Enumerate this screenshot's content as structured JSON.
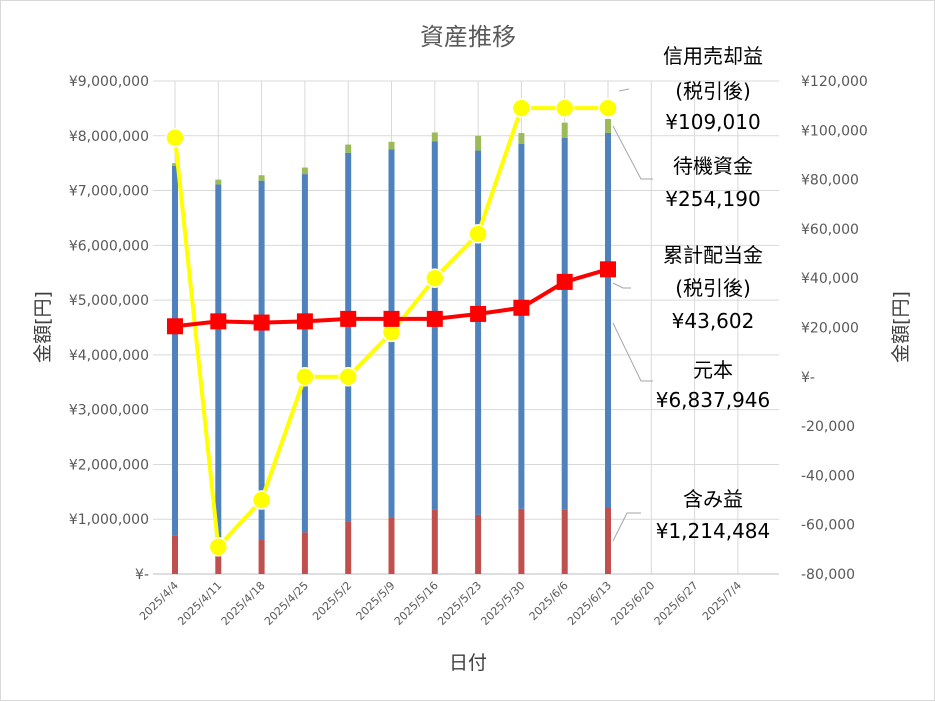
{
  "chart_data": {
    "type": "bar",
    "title": "資産推移",
    "xlabel": "日付",
    "ylabel": "金額[円]",
    "y2label": "金額[円]",
    "ylim": [
      0,
      9000000
    ],
    "y2lim": [
      -80000,
      120000
    ],
    "grid": true,
    "x_ticks": [
      "2025/4/4",
      "2025/4/11",
      "2025/4/18",
      "2025/4/25",
      "2025/5/2",
      "2025/5/9",
      "2025/5/16",
      "2025/5/23",
      "2025/5/30",
      "2025/6/6",
      "2025/6/13",
      "2025/6/20",
      "2025/6/27",
      "2025/7/4"
    ],
    "y_ticks": [
      "¥-",
      "¥1,000,000",
      "¥2,000,000",
      "¥3,000,000",
      "¥4,000,000",
      "¥5,000,000",
      "¥6,000,000",
      "¥7,000,000",
      "¥8,000,000",
      "¥9,000,000"
    ],
    "y2_ticks": [
      "-80,000",
      "-60,000",
      "-40,000",
      "-20,000",
      "¥-",
      "¥20,000",
      "¥40,000",
      "¥60,000",
      "¥80,000",
      "¥100,000",
      "¥120,000"
    ],
    "categories": [
      "2025/4/4",
      "2025/4/11",
      "2025/4/18",
      "2025/4/25",
      "2025/5/2",
      "2025/5/9",
      "2025/5/16",
      "2025/5/23",
      "2025/5/30",
      "2025/6/6",
      "2025/6/13"
    ],
    "stacked_series": [
      {
        "key": "gain",
        "color": "#c0504d",
        "values": [
          700000,
          350000,
          620000,
          760000,
          950000,
          1030000,
          1170000,
          1080000,
          1190000,
          1180000,
          1214484
        ]
      },
      {
        "key": "principal",
        "color": "#4f81bd",
        "values": [
          6750000,
          6760000,
          6560000,
          6540000,
          6740000,
          6720000,
          6730000,
          6650000,
          6660000,
          6780000,
          6837946
        ]
      },
      {
        "key": "standby",
        "color": "#9bbb59",
        "values": [
          50000,
          90000,
          100000,
          120000,
          150000,
          140000,
          160000,
          270000,
          200000,
          280000,
          254190
        ]
      }
    ],
    "line_series": [
      {
        "key": "sell_profit",
        "color": "#ffff00",
        "marker": "circle",
        "values": [
          97000,
          -69000,
          -50000,
          0,
          0,
          18000,
          40000,
          58000,
          109010,
          109010,
          109010
        ]
      },
      {
        "key": "dividend",
        "color": "#ff0000",
        "marker": "square",
        "values": [
          20500,
          22500,
          22000,
          22500,
          23500,
          23500,
          23500,
          25500,
          28000,
          38500,
          43602
        ]
      }
    ],
    "annotations": [
      {
        "key": "sell",
        "lines": [
          "信用売却益",
          "(税引後)",
          "¥109,010"
        ]
      },
      {
        "key": "standby",
        "lines": [
          "待機資金",
          "¥254,190"
        ]
      },
      {
        "key": "dividend",
        "lines": [
          "累計配当金",
          "(税引後)",
          "¥43,602"
        ]
      },
      {
        "key": "principal",
        "lines": [
          "元本",
          "¥6,837,946"
        ]
      },
      {
        "key": "gain",
        "lines": [
          "含み益",
          "¥1,214,484"
        ]
      }
    ]
  }
}
